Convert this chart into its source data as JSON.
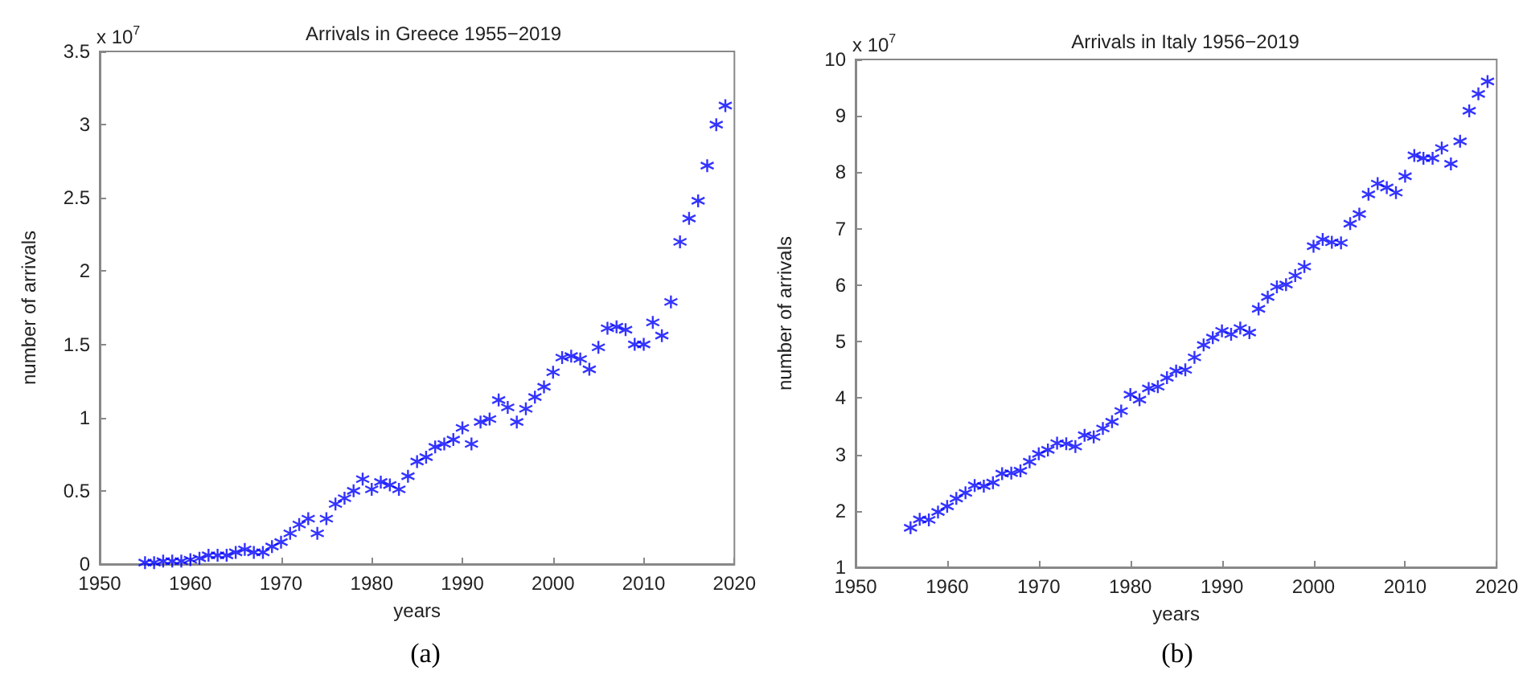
{
  "chart_data": [
    {
      "type": "scatter",
      "title": "Arrivals in Greece 1955−2019",
      "xlabel": "years",
      "ylabel": "number of arrivals",
      "annotations": [
        "x 10$^{7}$",
        "(a)"
      ],
      "x": [
        1955,
        1956,
        1957,
        1958,
        1959,
        1960,
        1961,
        1962,
        1963,
        1964,
        1965,
        1966,
        1967,
        1968,
        1969,
        1970,
        1971,
        1972,
        1973,
        1974,
        1975,
        1976,
        1977,
        1978,
        1979,
        1980,
        1981,
        1982,
        1983,
        1984,
        1985,
        1986,
        1987,
        1988,
        1989,
        1990,
        1991,
        1992,
        1993,
        1994,
        1995,
        1996,
        1997,
        1998,
        1999,
        2000,
        2001,
        2002,
        2003,
        2004,
        2005,
        2006,
        2007,
        2008,
        2009,
        2010,
        2011,
        2012,
        2013,
        2014,
        2015,
        2016,
        2017,
        2018,
        2019
      ],
      "series": [
        {
          "color": "#0000ff",
          "values": [
            0.01,
            0.01,
            0.02,
            0.02,
            0.02,
            0.03,
            0.04,
            0.06,
            0.06,
            0.06,
            0.08,
            0.1,
            0.08,
            0.08,
            0.12,
            0.15,
            0.21,
            0.27,
            0.31,
            0.21,
            0.31,
            0.41,
            0.45,
            0.5,
            0.58,
            0.51,
            0.56,
            0.54,
            0.51,
            0.6,
            0.7,
            0.73,
            0.8,
            0.82,
            0.85,
            0.93,
            0.82,
            0.97,
            0.99,
            1.12,
            1.07,
            0.97,
            1.06,
            1.14,
            1.21,
            1.31,
            1.41,
            1.42,
            1.4,
            1.33,
            1.48,
            1.61,
            1.62,
            1.6,
            1.5,
            1.5,
            1.65,
            1.56,
            1.79,
            2.2,
            2.36,
            2.48,
            2.72,
            3.0,
            3.13
          ]
        }
      ],
      "xlim": [
        1950,
        2020
      ],
      "xticks": [
        1950,
        1960,
        1970,
        1980,
        1990,
        2000,
        2010,
        2020
      ],
      "ylim": [
        0,
        3.5
      ],
      "yticks": [
        0,
        0.5,
        1,
        1.5,
        2,
        2.5,
        3,
        3.5
      ],
      "marker": "cross",
      "grid": false
    },
    {
      "type": "scatter",
      "title": "Arrivals in Italy 1956−2019",
      "xlabel": "years",
      "ylabel": "number of arrivals",
      "annotations": [
        "x 10$^{7}$",
        "(b)"
      ],
      "x": [
        1956,
        1957,
        1958,
        1959,
        1960,
        1961,
        1962,
        1963,
        1964,
        1965,
        1966,
        1967,
        1968,
        1969,
        1970,
        1971,
        1972,
        1973,
        1974,
        1975,
        1976,
        1977,
        1978,
        1979,
        1980,
        1981,
        1982,
        1983,
        1984,
        1985,
        1986,
        1987,
        1988,
        1989,
        1990,
        1991,
        1992,
        1993,
        1994,
        1995,
        1996,
        1997,
        1998,
        1999,
        2000,
        2001,
        2002,
        2003,
        2004,
        2005,
        2006,
        2007,
        2008,
        2009,
        2010,
        2011,
        2012,
        2013,
        2014,
        2015,
        2016,
        2017,
        2018,
        2019
      ],
      "series": [
        {
          "color": "#0000ff",
          "values": [
            1.7,
            1.85,
            1.84,
            1.98,
            2.08,
            2.22,
            2.32,
            2.45,
            2.44,
            2.5,
            2.66,
            2.67,
            2.71,
            2.87,
            3.01,
            3.08,
            3.2,
            3.19,
            3.14,
            3.34,
            3.31,
            3.46,
            3.58,
            3.77,
            4.06,
            3.97,
            4.17,
            4.2,
            4.36,
            4.48,
            4.5,
            4.72,
            4.94,
            5.07,
            5.19,
            5.13,
            5.24,
            5.16,
            5.58,
            5.79,
            5.97,
            6.01,
            6.17,
            6.33,
            6.69,
            6.81,
            6.76,
            6.75,
            7.09,
            7.26,
            7.61,
            7.8,
            7.73,
            7.64,
            7.93,
            8.3,
            8.25,
            8.25,
            8.43,
            8.15,
            8.55,
            9.09,
            9.39,
            9.61
          ]
        }
      ],
      "xlim": [
        1950,
        2020
      ],
      "xticks": [
        1950,
        1960,
        1970,
        1980,
        1990,
        2000,
        2010,
        2020
      ],
      "ylim": [
        1,
        10
      ],
      "yticks": [
        1,
        2,
        3,
        4,
        5,
        6,
        7,
        8,
        9,
        10
      ],
      "marker": "cross",
      "grid": false
    }
  ]
}
